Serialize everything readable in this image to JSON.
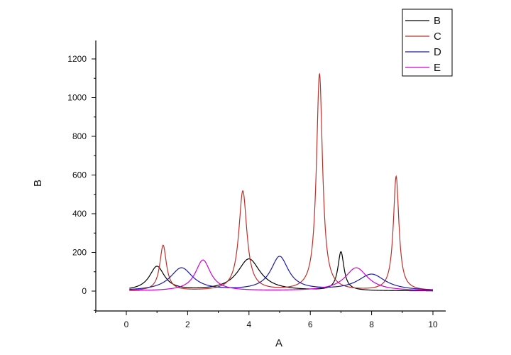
{
  "chart_data": {
    "type": "line",
    "xlabel": "A",
    "ylabel": "B",
    "xlim": [
      -1,
      10.6
    ],
    "ylim": [
      -100,
      1300
    ],
    "x_ticks": [
      0,
      2,
      4,
      6,
      8,
      10
    ],
    "y_ticks": [
      0,
      200,
      400,
      600,
      800,
      1000,
      1200
    ],
    "grid": false,
    "legend_position": "top-right",
    "x_range": [
      0.1,
      10
    ],
    "series": [
      {
        "name": "B",
        "color": "#000000",
        "peaks": [
          {
            "center": 1.0,
            "height": 125,
            "width": 0.3
          },
          {
            "center": 4.0,
            "height": 165,
            "width": 0.45
          },
          {
            "center": 7.0,
            "height": 200,
            "width": 0.12
          }
        ]
      },
      {
        "name": "C",
        "color": "#c0302a",
        "peaks": [
          {
            "center": 1.2,
            "height": 235,
            "width": 0.13
          },
          {
            "center": 3.8,
            "height": 515,
            "width": 0.16
          },
          {
            "center": 6.3,
            "height": 1120,
            "width": 0.12
          },
          {
            "center": 8.8,
            "height": 590,
            "width": 0.11
          }
        ]
      },
      {
        "name": "D",
        "color": "#1a1aa8",
        "peaks": [
          {
            "center": 1.8,
            "height": 118,
            "width": 0.45
          },
          {
            "center": 5.0,
            "height": 175,
            "width": 0.35
          },
          {
            "center": 8.0,
            "height": 85,
            "width": 0.55
          }
        ]
      },
      {
        "name": "E",
        "color": "#d000d0",
        "peaks": [
          {
            "center": 2.5,
            "height": 160,
            "width": 0.3
          },
          {
            "center": 7.5,
            "height": 120,
            "width": 0.45
          }
        ]
      }
    ]
  }
}
